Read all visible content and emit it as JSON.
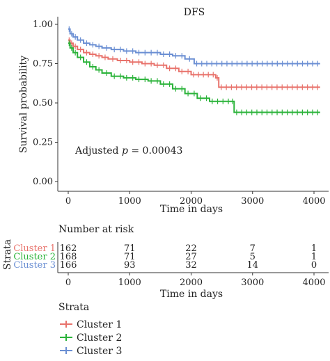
{
  "chart_data": {
    "type": "line",
    "title": "DFS",
    "xlabel": "Time in days",
    "ylabel": "Survival probability",
    "xlim": [
      -120,
      4150
    ],
    "ylim": [
      0,
      1
    ],
    "x_ticks": [
      0,
      1000,
      2000,
      3000,
      4000
    ],
    "y_ticks": [
      0.0,
      0.25,
      0.5,
      0.75,
      1.0
    ],
    "y_tick_labels": [
      "0.00",
      "0.25",
      "0.50",
      "0.75",
      "1.00"
    ],
    "annotation": {
      "prefix": "Adjusted ",
      "symbol": "p",
      "suffix": " = 0.00043"
    },
    "series": [
      {
        "name": "Cluster 1",
        "color": "#e8726b",
        "x": [
          0,
          30,
          80,
          150,
          250,
          350,
          450,
          550,
          650,
          800,
          1000,
          1200,
          1400,
          1600,
          1800,
          2000,
          2400,
          2450,
          4100
        ],
        "y": [
          0.9,
          0.88,
          0.86,
          0.84,
          0.82,
          0.81,
          0.8,
          0.79,
          0.78,
          0.77,
          0.76,
          0.75,
          0.74,
          0.72,
          0.7,
          0.68,
          0.66,
          0.6,
          0.6
        ]
      },
      {
        "name": "Cluster 2",
        "color": "#2bb33a",
        "x": [
          0,
          30,
          80,
          150,
          250,
          350,
          450,
          550,
          700,
          900,
          1100,
          1300,
          1500,
          1700,
          1900,
          2100,
          2300,
          2650,
          2700,
          4100
        ],
        "y": [
          0.88,
          0.85,
          0.82,
          0.79,
          0.76,
          0.73,
          0.71,
          0.69,
          0.67,
          0.66,
          0.65,
          0.64,
          0.62,
          0.59,
          0.56,
          0.53,
          0.51,
          0.51,
          0.44,
          0.44
        ]
      },
      {
        "name": "Cluster 3",
        "color": "#6b8fd3",
        "x": [
          0,
          30,
          80,
          150,
          250,
          350,
          450,
          550,
          700,
          900,
          1100,
          1300,
          1500,
          1700,
          1900,
          2050,
          4100
        ],
        "y": [
          0.97,
          0.94,
          0.92,
          0.9,
          0.88,
          0.87,
          0.86,
          0.85,
          0.84,
          0.83,
          0.82,
          0.82,
          0.81,
          0.8,
          0.78,
          0.75,
          0.75
        ]
      }
    ]
  },
  "risk_table": {
    "title": "Number at risk",
    "ylabel": "Strata",
    "xlabel": "Time in days",
    "times": [
      0,
      1000,
      2000,
      3000,
      4000
    ],
    "rows": [
      {
        "label": "Cluster 1",
        "color": "#e8726b",
        "values": [
          "162",
          "71",
          "22",
          "7",
          "1"
        ]
      },
      {
        "label": "Cluster 2",
        "color": "#2bb33a",
        "values": [
          "168",
          "71",
          "27",
          "5",
          "1"
        ]
      },
      {
        "label": "Cluster 3",
        "color": "#6b8fd3",
        "values": [
          "166",
          "93",
          "32",
          "14",
          "0"
        ]
      }
    ]
  },
  "legend": {
    "title": "Strata",
    "items": [
      {
        "label": "Cluster 1",
        "color": "#e8726b"
      },
      {
        "label": "Cluster 2",
        "color": "#2bb33a"
      },
      {
        "label": "Cluster 3",
        "color": "#6b8fd3"
      }
    ]
  }
}
